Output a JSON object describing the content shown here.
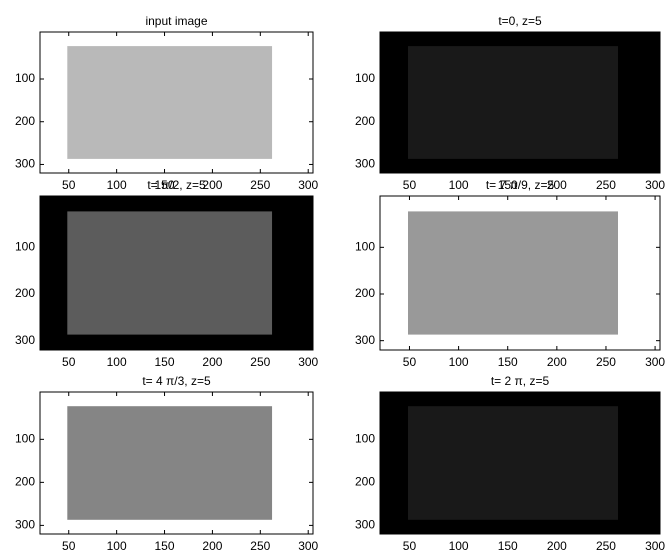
{
  "chart_data": [
    {
      "type": "image",
      "title": "input image",
      "xlim": [
        20,
        305
      ],
      "ylim": [
        -10,
        320
      ],
      "xticks": [
        50,
        100,
        150,
        200,
        250,
        300
      ],
      "yticks": [
        100,
        200,
        300
      ],
      "y_reversed": true
    },
    {
      "type": "image",
      "title": "t=0, z=5",
      "xlim": [
        20,
        305
      ],
      "ylim": [
        -10,
        320
      ],
      "xticks": [
        50,
        100,
        150,
        200,
        250,
        300
      ],
      "yticks": [
        100,
        200,
        300
      ],
      "y_reversed": true
    },
    {
      "type": "image",
      "title": "t= π/2, z=5",
      "xlim": [
        20,
        305
      ],
      "ylim": [
        -10,
        320
      ],
      "xticks": [
        50,
        100,
        150,
        200,
        250,
        300
      ],
      "yticks": [
        100,
        200,
        300
      ],
      "y_reversed": true
    },
    {
      "type": "image",
      "title": "t= 7 π/9, z=5",
      "xlim": [
        20,
        305
      ],
      "ylim": [
        -10,
        320
      ],
      "xticks": [
        50,
        100,
        150,
        200,
        250,
        300
      ],
      "yticks": [
        100,
        200,
        300
      ],
      "y_reversed": true
    },
    {
      "type": "image",
      "title": "t= 4 π/3, z=5",
      "xlim": [
        20,
        305
      ],
      "ylim": [
        -10,
        320
      ],
      "xticks": [
        50,
        100,
        150,
        200,
        250,
        300
      ],
      "yticks": [
        100,
        200,
        300
      ],
      "y_reversed": true
    },
    {
      "type": "image",
      "title": "t= 2 π, z=5",
      "xlim": [
        20,
        305
      ],
      "ylim": [
        -10,
        320
      ],
      "xticks": [
        50,
        100,
        150,
        200,
        250,
        300
      ],
      "yticks": [
        100,
        200,
        300
      ],
      "y_reversed": true
    }
  ]
}
